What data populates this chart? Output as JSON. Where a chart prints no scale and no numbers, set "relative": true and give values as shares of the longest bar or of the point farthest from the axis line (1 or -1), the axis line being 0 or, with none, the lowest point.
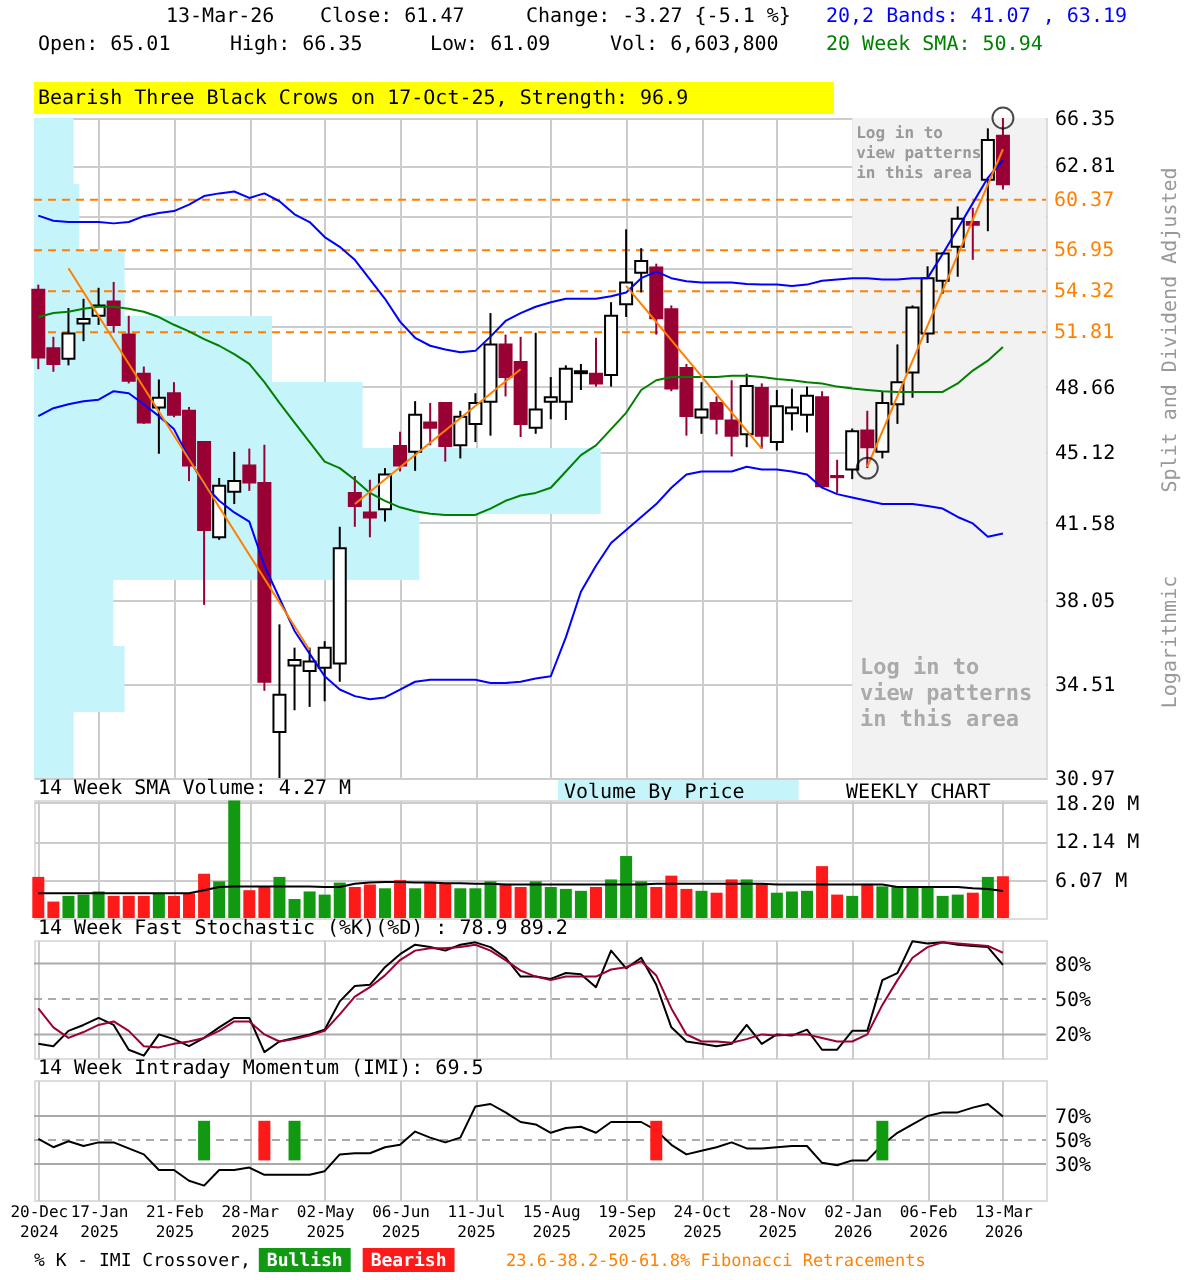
{
  "chart_data": [
    {
      "type": "candlestick",
      "x": [
        "2024-12-20",
        "2024-12-27",
        "2025-01-03",
        "2025-01-10",
        "2025-01-17",
        "2025-01-24",
        "2025-01-31",
        "2025-02-07",
        "2025-02-14",
        "2025-02-21",
        "2025-02-28",
        "2025-03-07",
        "2025-03-14",
        "2025-03-21",
        "2025-03-28",
        "2025-04-04",
        "2025-04-11",
        "2025-04-18",
        "2025-04-25",
        "2025-05-02",
        "2025-05-09",
        "2025-05-16",
        "2025-05-23",
        "2025-05-30",
        "2025-06-06",
        "2025-06-13",
        "2025-06-20",
        "2025-06-27",
        "2025-07-04",
        "2025-07-11",
        "2025-07-18",
        "2025-07-25",
        "2025-08-01",
        "2025-08-08",
        "2025-08-15",
        "2025-08-22",
        "2025-08-29",
        "2025-09-05",
        "2025-09-12",
        "2025-09-19",
        "2025-09-26",
        "2025-10-03",
        "2025-10-10",
        "2025-10-17",
        "2025-10-24",
        "2025-10-31",
        "2025-11-07",
        "2025-11-14",
        "2025-11-21",
        "2025-11-28",
        "2025-12-05",
        "2025-12-12",
        "2025-12-19",
        "2025-12-26",
        "2026-01-02",
        "2026-01-09",
        "2026-01-16",
        "2026-01-23",
        "2026-01-30",
        "2026-02-06",
        "2026-02-13",
        "2026-02-20",
        "2026-02-27",
        "2026-03-06",
        "2026-03-13"
      ],
      "ohlc": [
        [
          54.41,
          54.74,
          49.65,
          50.32
        ],
        [
          50.86,
          51.54,
          49.5,
          49.95
        ],
        [
          50.25,
          53.28,
          49.87,
          51.74
        ],
        [
          52.33,
          53.85,
          51.28,
          52.61
        ],
        [
          52.81,
          54.54,
          52.25,
          53.44
        ],
        [
          53.68,
          54.91,
          51.78,
          52.25
        ],
        [
          51.67,
          52.81,
          48.84,
          48.99
        ],
        [
          49.39,
          49.8,
          46.61,
          46.68
        ],
        [
          47.5,
          49.06,
          45.03,
          48.04
        ],
        [
          48.29,
          48.91,
          46.97,
          47.11
        ],
        [
          47.32,
          47.53,
          43.63,
          44.42
        ],
        [
          45.64,
          45.7,
          37.82,
          41.24
        ],
        [
          40.89,
          43.79,
          40.77,
          43.4
        ],
        [
          43.1,
          45.13,
          42.49,
          43.63
        ],
        [
          44.42,
          45.3,
          43.14,
          43.56
        ],
        [
          43.53,
          45.5,
          34.25,
          34.61
        ],
        [
          32.66,
          36.98,
          30.97,
          34.09
        ],
        [
          35.27,
          36.0,
          33.49,
          35.49
        ],
        [
          35.04,
          36.0,
          33.62,
          35.43
        ],
        [
          35.17,
          36.27,
          33.84,
          36.0
        ],
        [
          35.35,
          41.39,
          34.61,
          40.38
        ],
        [
          43.04,
          43.89,
          41.39,
          42.4
        ],
        [
          42.08,
          43.7,
          40.89,
          41.83
        ],
        [
          42.24,
          44.29,
          41.64,
          43.96
        ],
        [
          45.44,
          46.19,
          44.12,
          44.42
        ],
        [
          45.13,
          47.85,
          44.15,
          47.11
        ],
        [
          46.68,
          47.75,
          45.47,
          46.4
        ],
        [
          47.75,
          47.8,
          44.62,
          45.44
        ],
        [
          45.47,
          47.32,
          44.79,
          46.99
        ],
        [
          46.61,
          48.29,
          45.64,
          47.75
        ],
        [
          47.82,
          52.97,
          45.98,
          51.09
        ],
        [
          51.09,
          51.67,
          48.11,
          49.2
        ],
        [
          50.06,
          51.54,
          45.91,
          46.61
        ],
        [
          46.4,
          51.78,
          46.08,
          47.39
        ],
        [
          47.82,
          49.2,
          46.86,
          48.07
        ],
        [
          47.82,
          49.87,
          46.82,
          49.68
        ],
        [
          49.42,
          49.95,
          48.47,
          49.53
        ],
        [
          49.39,
          51.48,
          48.66,
          48.84
        ],
        [
          49.31,
          53.64,
          48.66,
          52.81
        ],
        [
          53.52,
          58.35,
          52.73,
          54.87
        ],
        [
          55.49,
          57.09,
          54.25,
          56.25
        ],
        [
          55.83,
          56.08,
          51.67,
          52.65
        ],
        [
          53.2,
          53.44,
          48.4,
          48.55
        ],
        [
          49.72,
          49.95,
          45.98,
          47.03
        ],
        [
          46.96,
          48.91,
          46.08,
          47.39
        ],
        [
          47.75,
          48.11,
          46.05,
          46.89
        ],
        [
          46.79,
          49.02,
          44.89,
          45.98
        ],
        [
          46.05,
          49.39,
          45.37,
          48.69
        ],
        [
          48.58,
          48.84,
          45.3,
          45.98
        ],
        [
          45.64,
          48.47,
          45.2,
          47.57
        ],
        [
          47.18,
          48.55,
          46.26,
          47.5
        ],
        [
          47.11,
          48.66,
          46.15,
          48.15
        ],
        [
          48.07,
          48.4,
          43.3,
          43.37
        ],
        [
          43.89,
          44.72,
          43.04,
          43.83
        ],
        [
          44.22,
          46.36,
          43.73,
          46.22
        ],
        [
          46.26,
          47.32,
          44.29,
          45.37
        ],
        [
          45.13,
          48.4,
          44.79,
          47.75
        ],
        [
          47.68,
          51.09,
          46.61,
          48.91
        ],
        [
          49.46,
          53.44,
          48.04,
          53.32
        ],
        [
          51.74,
          55.91,
          51.17,
          55.15
        ],
        [
          54.99,
          56.84,
          54.17,
          56.75
        ],
        [
          57.18,
          59.91,
          55.24,
          59.06
        ],
        [
          58.84,
          59.82,
          56.33,
          58.66
        ],
        [
          61.78,
          65.56,
          58.22,
          64.68
        ],
        [
          65.01,
          66.35,
          61.09,
          61.47
        ]
      ],
      "colors": [
        "#990033",
        "#990033",
        "#ffffff",
        "#ffffff",
        "#ffffff",
        "#990033",
        "#990033",
        "#990033",
        "#ffffff",
        "#990033",
        "#990033",
        "#990033",
        "#ffffff",
        "#ffffff",
        "#990033",
        "#990033",
        "#ffffff",
        "#ffffff",
        "#ffffff",
        "#ffffff",
        "#ffffff",
        "#990033",
        "#990033",
        "#ffffff",
        "#990033",
        "#ffffff",
        "#990033",
        "#990033",
        "#ffffff",
        "#ffffff",
        "#ffffff",
        "#990033",
        "#990033",
        "#ffffff",
        "#ffffff",
        "#ffffff",
        "#ffffff",
        "#990033",
        "#ffffff",
        "#ffffff",
        "#ffffff",
        "#990033",
        "#990033",
        "#990033",
        "#ffffff",
        "#990033",
        "#990033",
        "#ffffff",
        "#990033",
        "#ffffff",
        "#ffffff",
        "#ffffff",
        "#990033",
        "#990033",
        "#ffffff",
        "#990033",
        "#ffffff",
        "#ffffff",
        "#ffffff",
        "#ffffff",
        "#ffffff",
        "#ffffff",
        "#990033",
        "#ffffff",
        "#990033"
      ],
      "series": [
        {
          "type": "line",
          "name": "20,2 Bands: 41.07 , 63.19",
          "color": "#0000ff",
          "values": [
            59.28,
            58.93,
            58.84,
            58.84,
            58.84,
            58.75,
            58.84,
            59.24,
            59.46,
            59.59,
            60.04,
            60.63,
            60.82,
            60.95,
            60.5,
            60.82,
            60.27,
            59.37,
            58.84,
            57.83,
            57.18,
            56.33,
            55.07,
            53.85,
            52.45,
            51.48,
            51.01,
            50.79,
            50.63,
            50.71,
            51.55,
            52.49,
            52.97,
            53.36,
            53.64,
            53.85,
            53.85,
            53.85,
            54.01,
            54.25,
            55.15,
            55.57,
            55.15,
            54.95,
            54.87,
            54.87,
            54.87,
            54.78,
            54.74,
            54.74,
            54.66,
            54.74,
            54.99,
            55.07,
            55.15,
            55.15,
            55.07,
            55.07,
            55.15,
            55.15,
            56.71,
            58.39,
            60.14,
            61.92,
            63.19
          ]
        },
        {
          "type": "line",
          "color": "#0000ff",
          "values": [
            47.03,
            47.46,
            47.68,
            47.85,
            47.93,
            48.4,
            48.29,
            47.68,
            47.03,
            46.33,
            44.79,
            43.46,
            42.65,
            42.08,
            41.64,
            39.57,
            38.11,
            36.7,
            35.75,
            34.83,
            34.3,
            34.04,
            33.92,
            33.99,
            34.3,
            34.61,
            34.69,
            34.69,
            34.69,
            34.69,
            34.56,
            34.56,
            34.61,
            34.74,
            34.83,
            36.43,
            38.4,
            39.57,
            40.62,
            41.24,
            41.86,
            42.49,
            43.3,
            43.96,
            44.12,
            44.12,
            44.12,
            44.36,
            44.22,
            44.22,
            44.12,
            43.96,
            43.3,
            42.98,
            42.81,
            42.65,
            42.49,
            42.49,
            42.49,
            42.4,
            42.27,
            41.86,
            41.55,
            40.92,
            41.07
          ]
        },
        {
          "type": "line",
          "name": "20 Week SMA: 50.94",
          "color": "#008000",
          "values": [
            52.73,
            52.97,
            53.05,
            53.24,
            53.36,
            53.36,
            53.24,
            53.05,
            52.73,
            52.26,
            51.86,
            51.4,
            51.01,
            50.52,
            49.95,
            48.91,
            47.75,
            46.68,
            45.64,
            44.62,
            44.29,
            43.7,
            43.04,
            42.65,
            42.33,
            42.14,
            42.02,
            41.96,
            41.96,
            41.96,
            42.27,
            42.65,
            42.91,
            43.04,
            43.3,
            44.12,
            44.96,
            45.47,
            46.33,
            47.21,
            48.47,
            49.02,
            49.2,
            49.2,
            49.2,
            49.2,
            49.28,
            49.28,
            49.2,
            49.09,
            49.02,
            48.91,
            48.84,
            48.66,
            48.55,
            48.47,
            48.4,
            48.36,
            48.36,
            48.36,
            48.36,
            48.84,
            49.57,
            50.14,
            50.94
          ]
        },
        {
          "type": "line",
          "color": "#ff8000",
          "x": [
            "2025-01-03",
            "2025-04-25"
          ],
          "values": [
            55.78,
            35.89
          ]
        },
        {
          "type": "line",
          "color": "#ff8000",
          "x": [
            "2025-05-16",
            "2025-08-01"
          ],
          "values": [
            42.49,
            49.65
          ]
        },
        {
          "type": "line",
          "color": "#ff8000",
          "x": [
            "2025-09-19",
            "2025-11-21"
          ],
          "values": [
            54.66,
            45.3
          ]
        },
        {
          "type": "line",
          "color": "#ff8000",
          "x": [
            "2026-01-09",
            "2026-03-13"
          ],
          "values": [
            44.36,
            64.0
          ]
        },
        {
          "type": "scatter",
          "marker": "circle",
          "color": "#000000",
          "x": [
            "2026-01-09",
            "2026-03-13"
          ],
          "values": [
            44.29,
            66.35
          ]
        }
      ],
      "xlim": [
        "2024-12-18",
        "2026-04-02"
      ],
      "xticks": [
        {
          "value": "2024-12-20",
          "label": null
        },
        {
          "value": "2025-01-17",
          "label": null
        },
        {
          "value": "2025-02-21",
          "label": null
        },
        {
          "value": "2025-03-28",
          "label": null
        },
        {
          "value": "2025-05-02",
          "label": null
        },
        {
          "value": "2025-06-06",
          "label": null
        },
        {
          "value": "2025-07-11",
          "label": null
        },
        {
          "value": "2025-08-15",
          "label": null
        },
        {
          "value": "2025-09-19",
          "label": null
        },
        {
          "value": "2025-10-24",
          "label": null
        },
        {
          "value": "2025-11-28",
          "label": null
        },
        {
          "value": "2026-01-02",
          "label": null
        },
        {
          "value": "2026-02-06",
          "label": null
        },
        {
          "value": "2026-03-13",
          "label": null
        }
      ],
      "ylim": [
        30.97,
        66.35
      ],
      "yticks": [
        30.97,
        34.51,
        38.05,
        41.58,
        45.12,
        48.66,
        {
          "value": 52.2,
          "label": null
        },
        {
          "value": 55.74,
          "label": null
        },
        {
          "value": 59.27,
          "label": null
        },
        62.81,
        66.35
      ],
      "log": "y",
      "grid": true,
      "tick_labels": "y",
      "legend": "top right",
      "bands": [
        {
          "axis": "x",
          "from": "2026-01-02",
          "to": "2026-04-02",
          "label": "Log in to view patterns in this area",
          "color": "#f2f2f2"
        }
      ],
      "ref_lines": [
        {
          "axis": "y",
          "value": 60.37,
          "label": "60.37",
          "color": "#ff8000",
          "line_style": "dashed"
        },
        {
          "axis": "y",
          "value": 56.95,
          "label": "56.95",
          "color": "#ff8000",
          "line_style": "dashed"
        },
        {
          "axis": "y",
          "value": 54.32,
          "label": "54.32",
          "color": "#ff8000",
          "line_style": "dashed"
        },
        {
          "axis": "y",
          "value": 51.81,
          "label": "51.81",
          "color": "#ff8000",
          "line_style": "dashed"
        }
      ],
      "annotations": [
        "13-Mar-26",
        "Close: 61.47",
        "Change: -3.27 {-5.1 %}",
        "Open: 65.01",
        "High: 66.35",
        "Low: 61.09",
        "Vol: 6,603,800",
        "Bearish Three Black Crows on 17-Oct-25, Strength: 96.9",
        "Log in to view patterns in this area",
        "Split and Dividend Adjusted",
        "Logarithmic",
        "WEEKLY CHART"
      ]
    },
    {
      "type": "bar",
      "orientation": "horizontal",
      "relative": true,
      "categories": [
        null,
        null,
        null,
        null,
        null,
        null,
        null,
        null,
        null,
        null
      ],
      "series": [
        {
          "name": "Volume By Price",
          "color": "#c6f4fb",
          "values": [
            0.07,
            0.08,
            0.16,
            0.42,
            0.58,
            1,
            0.68,
            0.14,
            0.16,
            0.07
          ]
        }
      ]
    },
    {
      "type": "bar",
      "title": "14 Week SMA Volume: 4.27 M",
      "x": [
        "2024-12-20",
        "2024-12-27",
        "2025-01-03",
        "2025-01-10",
        "2025-01-17",
        "2025-01-24",
        "2025-01-31",
        "2025-02-07",
        "2025-02-14",
        "2025-02-21",
        "2025-02-28",
        "2025-03-07",
        "2025-03-14",
        "2025-03-21",
        "2025-03-28",
        "2025-04-04",
        "2025-04-11",
        "2025-04-18",
        "2025-04-25",
        "2025-05-02",
        "2025-05-09",
        "2025-05-16",
        "2025-05-23",
        "2025-05-30",
        "2025-06-06",
        "2025-06-13",
        "2025-06-20",
        "2025-06-27",
        "2025-07-04",
        "2025-07-11",
        "2025-07-18",
        "2025-07-25",
        "2025-08-01",
        "2025-08-08",
        "2025-08-15",
        "2025-08-22",
        "2025-08-29",
        "2025-09-05",
        "2025-09-12",
        "2025-09-19",
        "2025-09-26",
        "2025-10-03",
        "2025-10-10",
        "2025-10-17",
        "2025-10-24",
        "2025-10-31",
        "2025-11-07",
        "2025-11-14",
        "2025-11-21",
        "2025-11-28",
        "2025-12-05",
        "2025-12-12",
        "2025-12-19",
        "2025-12-26",
        "2026-01-02",
        "2026-01-09",
        "2026-01-16",
        "2026-01-23",
        "2026-01-30",
        "2026-02-06",
        "2026-02-13",
        "2026-02-20",
        "2026-02-27",
        "2026-03-06",
        "2026-03-13"
      ],
      "series": [
        {
          "type": "bar",
          "colors": [
            "#ff1a1a",
            "#ff1a1a",
            "#119911",
            "#119911",
            "#119911",
            "#ff1a1a",
            "#ff1a1a",
            "#ff1a1a",
            "#119911",
            "#ff1a1a",
            "#ff1a1a",
            "#ff1a1a",
            "#119911",
            "#119911",
            "#ff1a1a",
            "#ff1a1a",
            "#119911",
            "#119911",
            "#119911",
            "#119911",
            "#119911",
            "#ff1a1a",
            "#ff1a1a",
            "#119911",
            "#ff1a1a",
            "#119911",
            "#ff1a1a",
            "#ff1a1a",
            "#119911",
            "#119911",
            "#119911",
            "#ff1a1a",
            "#ff1a1a",
            "#119911",
            "#119911",
            "#119911",
            "#119911",
            "#ff1a1a",
            "#119911",
            "#119911",
            "#119911",
            "#ff1a1a",
            "#ff1a1a",
            "#ff1a1a",
            "#119911",
            "#ff1a1a",
            "#ff1a1a",
            "#119911",
            "#ff1a1a",
            "#119911",
            "#119911",
            "#119911",
            "#ff1a1a",
            "#ff1a1a",
            "#119911",
            "#ff1a1a",
            "#119911",
            "#119911",
            "#119911",
            "#119911",
            "#119911",
            "#119911",
            "#ff1a1a",
            "#119911",
            "#ff1a1a"
          ],
          "values": [
            6.5,
            2.6,
            3.5,
            3.7,
            4.2,
            3.5,
            3.5,
            3.5,
            3.9,
            3.5,
            3.9,
            7.0,
            5.8,
            18.6,
            4.4,
            4.9,
            6.5,
            3.0,
            4.2,
            3.7,
            5.6,
            4.9,
            5.3,
            4.7,
            6.0,
            4.7,
            5.7,
            5.4,
            4.7,
            4.7,
            5.8,
            5.4,
            4.9,
            5.8,
            4.9,
            4.6,
            4.3,
            4.9,
            6.1,
            9.8,
            5.8,
            4.9,
            6.7,
            4.6,
            4.3,
            4.0,
            6.1,
            6.1,
            5.4,
            4.0,
            4.2,
            4.3,
            8.2,
            3.7,
            3.5,
            5.4,
            5.0,
            5.0,
            5.0,
            5.0,
            3.5,
            3.7,
            4.0,
            6.5,
            6.6
          ]
        },
        {
          "type": "line",
          "color": "#000000",
          "values": [
            3.9,
            3.9,
            3.9,
            3.9,
            3.9,
            3.9,
            3.9,
            3.9,
            3.9,
            3.9,
            3.9,
            4.4,
            4.9,
            5.0,
            5.0,
            5.0,
            5.0,
            5.0,
            5.0,
            4.9,
            4.9,
            5.4,
            5.6,
            5.7,
            5.7,
            5.6,
            5.6,
            5.5,
            5.5,
            5.4,
            5.4,
            5.3,
            5.3,
            5.3,
            5.3,
            5.3,
            5.3,
            5.3,
            5.3,
            5.3,
            5.3,
            5.4,
            5.4,
            5.4,
            5.4,
            5.4,
            5.4,
            5.4,
            5.4,
            5.3,
            5.3,
            5.3,
            5.3,
            5.3,
            5.3,
            5.3,
            5.3,
            4.9,
            4.9,
            4.9,
            4.9,
            4.9,
            4.7,
            4.6,
            4.27
          ]
        }
      ],
      "xlim": [
        "2024-12-18",
        "2026-04-02"
      ],
      "xticks": [
        {
          "value": "2024-12-20",
          "label": null
        },
        {
          "value": "2025-01-17",
          "label": null
        },
        {
          "value": "2025-02-21",
          "label": null
        },
        {
          "value": "2025-03-28",
          "label": null
        },
        {
          "value": "2025-05-02",
          "label": null
        },
        {
          "value": "2025-06-06",
          "label": null
        },
        {
          "value": "2025-07-11",
          "label": null
        },
        {
          "value": "2025-08-15",
          "label": null
        },
        {
          "value": "2025-09-19",
          "label": null
        },
        {
          "value": "2025-10-24",
          "label": null
        },
        {
          "value": "2025-11-28",
          "label": null
        },
        {
          "value": "2026-01-02",
          "label": null
        },
        {
          "value": "2026-02-06",
          "label": null
        },
        {
          "value": "2026-03-13",
          "label": null
        }
      ],
      "ylim": [
        0,
        18.66
      ],
      "yticks": [
        {
          "value": 6.07,
          "label": "6.07 M"
        },
        {
          "value": 12.14,
          "label": "12.14 M"
        },
        {
          "value": 18.2,
          "label": "18.20 M"
        }
      ],
      "grid": true,
      "tick_labels": "y"
    },
    {
      "type": "line",
      "title": "14 Week Fast Stochastic (%K)(%D) : 78.9 89.2",
      "x": [
        "2024-12-20",
        "2024-12-27",
        "2025-01-03",
        "2025-01-10",
        "2025-01-17",
        "2025-01-24",
        "2025-01-31",
        "2025-02-07",
        "2025-02-14",
        "2025-02-21",
        "2025-02-28",
        "2025-03-07",
        "2025-03-14",
        "2025-03-21",
        "2025-03-28",
        "2025-04-04",
        "2025-04-11",
        "2025-04-18",
        "2025-04-25",
        "2025-05-02",
        "2025-05-09",
        "2025-05-16",
        "2025-05-23",
        "2025-05-30",
        "2025-06-06",
        "2025-06-13",
        "2025-06-20",
        "2025-06-27",
        "2025-07-04",
        "2025-07-11",
        "2025-07-18",
        "2025-07-25",
        "2025-08-01",
        "2025-08-08",
        "2025-08-15",
        "2025-08-22",
        "2025-08-29",
        "2025-09-05",
        "2025-09-12",
        "2025-09-19",
        "2025-09-26",
        "2025-10-03",
        "2025-10-10",
        "2025-10-17",
        "2025-10-24",
        "2025-10-31",
        "2025-11-07",
        "2025-11-14",
        "2025-11-21",
        "2025-11-28",
        "2025-12-05",
        "2025-12-12",
        "2025-12-19",
        "2025-12-26",
        "2026-01-02",
        "2026-01-09",
        "2026-01-16",
        "2026-01-23",
        "2026-01-30",
        "2026-02-06",
        "2026-02-13",
        "2026-02-20",
        "2026-02-27",
        "2026-03-06",
        "2026-03-13"
      ],
      "series": [
        {
          "color": "#000000",
          "values": [
            12,
            10,
            23,
            28,
            34,
            28,
            7,
            2,
            20,
            16,
            10,
            17,
            26,
            34,
            34,
            5,
            14,
            17,
            20,
            24,
            48,
            61,
            62,
            77,
            88,
            96,
            94,
            91,
            96,
            98,
            94,
            85,
            69,
            69,
            67,
            72,
            71,
            60,
            91,
            76,
            85,
            62,
            26,
            14,
            12,
            10,
            12,
            28,
            12,
            20,
            19,
            24,
            7,
            7,
            23,
            23,
            66,
            72,
            99,
            97,
            98,
            96,
            95,
            94,
            78.9
          ]
        },
        {
          "color": "#990033",
          "values": [
            42,
            26,
            17,
            22,
            28,
            31,
            23,
            10,
            9,
            12,
            14,
            17,
            23,
            31,
            31,
            20,
            14,
            16,
            19,
            23,
            37,
            52,
            60,
            70,
            83,
            91,
            93,
            93,
            94,
            96,
            91,
            83,
            74,
            69,
            66,
            69,
            69,
            69,
            75,
            77,
            82,
            70,
            42,
            20,
            14,
            14,
            13,
            16,
            20,
            19,
            20,
            20,
            17,
            14,
            14,
            20,
            45,
            66,
            85,
            94,
            98,
            97,
            96,
            95,
            89.2
          ]
        }
      ],
      "xlim": [
        "2024-12-18",
        "2026-04-02"
      ],
      "xticks": [
        {
          "value": "2024-12-20",
          "label": null
        },
        {
          "value": "2025-01-17",
          "label": null
        },
        {
          "value": "2025-02-21",
          "label": null
        },
        {
          "value": "2025-03-28",
          "label": null
        },
        {
          "value": "2025-05-02",
          "label": null
        },
        {
          "value": "2025-06-06",
          "label": null
        },
        {
          "value": "2025-07-11",
          "label": null
        },
        {
          "value": "2025-08-15",
          "label": null
        },
        {
          "value": "2025-09-19",
          "label": null
        },
        {
          "value": "2025-10-24",
          "label": null
        },
        {
          "value": "2025-11-28",
          "label": null
        },
        {
          "value": "2026-01-02",
          "label": null
        },
        {
          "value": "2026-02-06",
          "label": null
        },
        {
          "value": "2026-03-13",
          "label": null
        }
      ],
      "ylim": [
        0,
        100
      ],
      "yticks": [
        {
          "value": 20,
          "label": "20%"
        },
        {
          "value": 50,
          "label": "50%"
        },
        {
          "value": 80,
          "label": "80%"
        }
      ],
      "grid": "x",
      "tick_labels": "y",
      "ref_lines": [
        {
          "axis": "y",
          "value": 80,
          "color": "#aaaaaa"
        },
        {
          "axis": "y",
          "value": 50,
          "color": "#aaaaaa",
          "line_style": "dashed"
        },
        {
          "axis": "y",
          "value": 20,
          "color": "#aaaaaa"
        }
      ]
    },
    {
      "type": "line",
      "title": "14 Week Intraday Momentum (IMI): 69.5",
      "x": [
        "2024-12-20",
        "2024-12-27",
        "2025-01-03",
        "2025-01-10",
        "2025-01-17",
        "2025-01-24",
        "2025-01-31",
        "2025-02-07",
        "2025-02-14",
        "2025-02-21",
        "2025-02-28",
        "2025-03-07",
        "2025-03-14",
        "2025-03-21",
        "2025-03-28",
        "2025-04-04",
        "2025-04-11",
        "2025-04-18",
        "2025-04-25",
        "2025-05-02",
        "2025-05-09",
        "2025-05-16",
        "2025-05-23",
        "2025-05-30",
        "2025-06-06",
        "2025-06-13",
        "2025-06-20",
        "2025-06-27",
        "2025-07-04",
        "2025-07-11",
        "2025-07-18",
        "2025-07-25",
        "2025-08-01",
        "2025-08-08",
        "2025-08-15",
        "2025-08-22",
        "2025-08-29",
        "2025-09-05",
        "2025-09-12",
        "2025-09-19",
        "2025-09-26",
        "2025-10-03",
        "2025-10-10",
        "2025-10-17",
        "2025-10-24",
        "2025-10-31",
        "2025-11-07",
        "2025-11-14",
        "2025-11-21",
        "2025-11-28",
        "2025-12-05",
        "2025-12-12",
        "2025-12-19",
        "2025-12-26",
        "2026-01-02",
        "2026-01-09",
        "2026-01-16",
        "2026-01-23",
        "2026-01-30",
        "2026-02-06",
        "2026-02-13",
        "2026-02-20",
        "2026-02-27",
        "2026-03-06",
        "2026-03-13"
      ],
      "series": [
        {
          "color": "#000000",
          "values": [
            51,
            44,
            49,
            45,
            48,
            48,
            43,
            38,
            25,
            25,
            16,
            12,
            25,
            25,
            27,
            21,
            21,
            21,
            21,
            24,
            38,
            39,
            39,
            44,
            46,
            57,
            52,
            48,
            52,
            78,
            80,
            73,
            65,
            63,
            56,
            60,
            61,
            56,
            65,
            65,
            65,
            58,
            46,
            38,
            41,
            44,
            48,
            43,
            43,
            44,
            45,
            45,
            31,
            29,
            33,
            33,
            46,
            56,
            63,
            70,
            73,
            73,
            77,
            80,
            69.5
          ]
        },
        {
          "type": "bar",
          "name": "Bullish",
          "color": "#119911",
          "x": [
            "2025-03-07",
            "2025-04-18",
            "2026-01-16"
          ],
          "base": [
            33,
            33,
            33
          ],
          "values": [
            33,
            33,
            33
          ]
        },
        {
          "type": "bar",
          "name": "Bearish",
          "color": "#ff1a1a",
          "x": [
            "2025-04-04",
            "2025-10-03"
          ],
          "base": [
            33,
            33
          ],
          "values": [
            33,
            33
          ]
        }
      ],
      "xlim": [
        "2024-12-18",
        "2026-04-02"
      ],
      "xticks": [
        {
          "value": "2024-12-20",
          "label": "20-Dec 2024"
        },
        {
          "value": "2025-01-17",
          "label": "17-Jan 2025"
        },
        {
          "value": "2025-02-21",
          "label": "21-Feb 2025"
        },
        {
          "value": "2025-03-28",
          "label": "28-Mar 2025"
        },
        {
          "value": "2025-05-02",
          "label": "02-May 2025"
        },
        {
          "value": "2025-06-06",
          "label": "06-Jun 2025"
        },
        {
          "value": "2025-07-11",
          "label": "11-Jul 2025"
        },
        {
          "value": "2025-08-15",
          "label": "15-Aug 2025"
        },
        {
          "value": "2025-09-19",
          "label": "19-Sep 2025"
        },
        {
          "value": "2025-10-24",
          "label": "24-Oct 2025"
        },
        {
          "value": "2025-11-28",
          "label": "28-Nov 2025"
        },
        {
          "value": "2026-01-02",
          "label": "02-Jan 2026"
        },
        {
          "value": "2026-02-06",
          "label": "06-Feb 2026"
        },
        {
          "value": "2026-03-13",
          "label": "13-Mar 2026"
        }
      ],
      "ylim": [
        0,
        100
      ],
      "yticks": [
        {
          "value": 30,
          "label": "30%"
        },
        {
          "value": 50,
          "label": "50%"
        },
        {
          "value": 70,
          "label": "70%"
        }
      ],
      "grid": "x",
      "ref_lines": [
        {
          "axis": "y",
          "value": 70,
          "color": "#aaaaaa"
        },
        {
          "axis": "y",
          "value": 50,
          "color": "#aaaaaa",
          "line_style": "dashed"
        },
        {
          "axis": "y",
          "value": 30,
          "color": "#aaaaaa"
        }
      ],
      "legend": "bottom",
      "legend_title": "% K - IMI Crossover,",
      "annotations": [
        "23.6-38.2-50-61.8% Fibonacci Retracements"
      ]
    }
  ]
}
